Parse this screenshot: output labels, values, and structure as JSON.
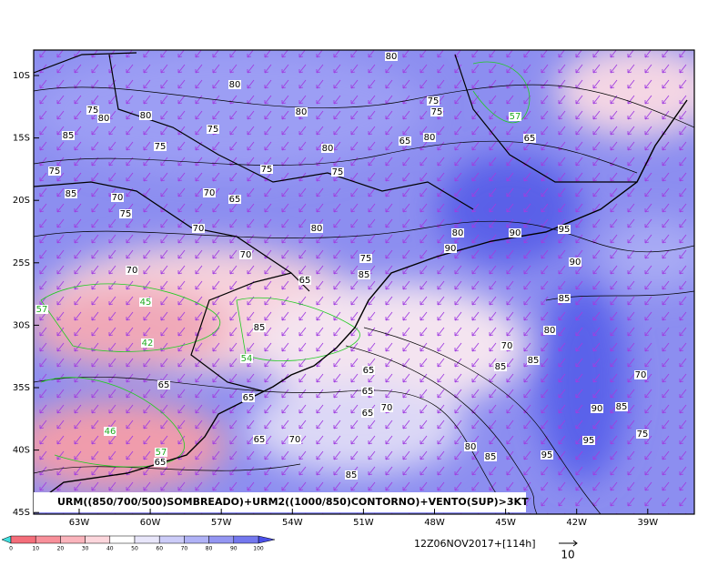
{
  "map": {
    "lat_labels": [
      "10S",
      "15S",
      "20S",
      "25S",
      "30S",
      "35S",
      "40S",
      "45S"
    ],
    "lon_labels": [
      "63W",
      "60W",
      "57W",
      "54W",
      "51W",
      "48W",
      "45W",
      "42W",
      "39W"
    ],
    "caption": "URM((850/700/500)SOMBREADO)+URM2((1000/850)CONTORNO)+VENTO(SUP)>3KT",
    "colorbar_ticks": [
      0,
      10,
      20,
      30,
      40,
      50,
      60,
      70,
      80,
      90,
      100
    ],
    "valid_time": "12Z06NOV2017+[114h]",
    "vector_scale": "10",
    "contour_labels": [
      "80",
      "80",
      "75",
      "80",
      "80",
      "85",
      "75",
      "80",
      "75",
      "75",
      "57",
      "65",
      "80",
      "65",
      "75",
      "80",
      "75",
      "75",
      "75",
      "85",
      "70",
      "70",
      "65",
      "75",
      "70",
      "80",
      "70",
      "75",
      "90",
      "80",
      "90",
      "95",
      "90",
      "70",
      "65",
      "85",
      "85",
      "80",
      "70",
      "85",
      "85",
      "57",
      "45",
      "42",
      "85",
      "54",
      "65",
      "65",
      "65",
      "70",
      "65",
      "90",
      "85",
      "70",
      "75",
      "95",
      "95",
      "85",
      "80",
      "85",
      "57",
      "65",
      "46",
      "70",
      "65",
      "65"
    ]
  }
}
